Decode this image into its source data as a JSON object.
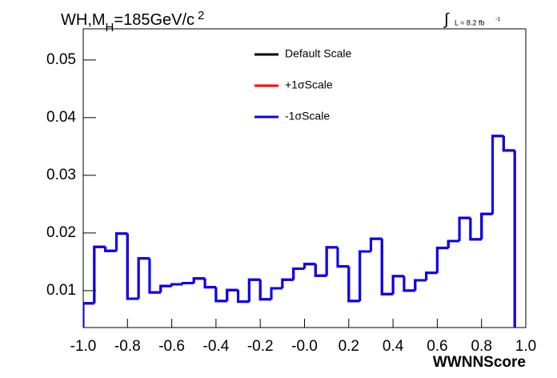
{
  "chart_data": {
    "type": "histogram",
    "title_parts": [
      "WH,M",
      "H",
      "=185GeV/c",
      "2"
    ],
    "lumi_parts": [
      "∫",
      "L = 8.2 fb",
      "-1"
    ],
    "xlabel": "WWNNScore",
    "bins": [
      -1.0,
      -0.95,
      -0.9,
      -0.85,
      -0.8,
      -0.75,
      -0.7,
      -0.65,
      -0.6,
      -0.55,
      -0.5,
      -0.45,
      -0.4,
      -0.35,
      -0.3,
      -0.25,
      -0.2,
      -0.15,
      -0.1,
      -0.05,
      0.0,
      0.05,
      0.1,
      0.15,
      0.2,
      0.25,
      0.3,
      0.35,
      0.4,
      0.45,
      0.5,
      0.55,
      0.6,
      0.65,
      0.7,
      0.75,
      0.8,
      0.85,
      0.9,
      0.95,
      1.0
    ],
    "series": [
      {
        "name": "Default Scale",
        "color": "#000000",
        "values": [
          0.0078,
          0.0176,
          0.0169,
          0.0199,
          0.0086,
          0.0156,
          0.0097,
          0.0108,
          0.0111,
          0.0113,
          0.0121,
          0.0106,
          0.0082,
          0.0101,
          0.0081,
          0.0119,
          0.0085,
          0.0104,
          0.0119,
          0.0138,
          0.0146,
          0.0126,
          0.0175,
          0.0142,
          0.0082,
          0.0168,
          0.019,
          0.0094,
          0.0125,
          0.01,
          0.0118,
          0.0131,
          0.0174,
          0.0186,
          0.0226,
          0.0189,
          0.0233,
          0.0368,
          0.0343,
          0
        ]
      },
      {
        "name": "+1σScale",
        "color": "#ff0000",
        "values": [
          0.0078,
          0.0176,
          0.0169,
          0.0199,
          0.0086,
          0.0156,
          0.0097,
          0.0108,
          0.0111,
          0.0113,
          0.0121,
          0.0106,
          0.0082,
          0.0101,
          0.0081,
          0.0119,
          0.0085,
          0.0104,
          0.0119,
          0.0138,
          0.0146,
          0.0126,
          0.0175,
          0.0142,
          0.0082,
          0.0168,
          0.019,
          0.0094,
          0.0125,
          0.01,
          0.0118,
          0.0131,
          0.0174,
          0.0186,
          0.0226,
          0.0189,
          0.0233,
          0.0368,
          0.0343,
          0
        ]
      },
      {
        "name": "-1σScale",
        "color": "#0000ff",
        "values": [
          0.0078,
          0.0176,
          0.0169,
          0.0199,
          0.0086,
          0.0156,
          0.0097,
          0.0108,
          0.0111,
          0.0113,
          0.0121,
          0.0106,
          0.0082,
          0.0101,
          0.0081,
          0.0119,
          0.0085,
          0.0104,
          0.0119,
          0.0138,
          0.0146,
          0.0126,
          0.0175,
          0.0142,
          0.0082,
          0.0168,
          0.019,
          0.0094,
          0.0125,
          0.01,
          0.0118,
          0.0131,
          0.0174,
          0.0186,
          0.0226,
          0.0189,
          0.0233,
          0.0368,
          0.0343,
          0
        ]
      }
    ],
    "xlim": [
      -1.0,
      1.0
    ],
    "xticks": [
      {
        "value": -1.0,
        "label": "-1.0"
      },
      -0.8,
      -0.6,
      -0.4,
      -0.2,
      {
        "value": 0,
        "label": "-0.0"
      },
      0.2,
      0.4,
      0.6,
      0.8,
      {
        "value": 1.0,
        "label": "1.0"
      }
    ],
    "ylim": [
      0.0036,
      0.0554
    ],
    "yticks": [
      0.01,
      0.02,
      0.03,
      0.04,
      0.05
    ]
  }
}
